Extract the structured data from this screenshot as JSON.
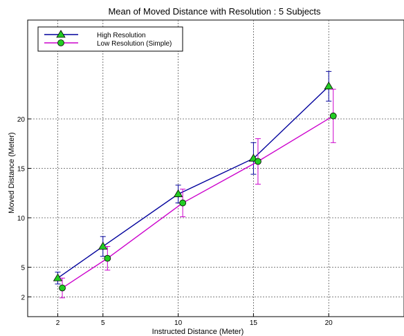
{
  "chart_data": {
    "type": "line",
    "title": "Mean of Moved Distance with Resolution : 5 Subjects",
    "xlabel": "Instructed Distance (Meter)",
    "ylabel": "Moved Distance (Meter)",
    "x_ticks": [
      2,
      5,
      10,
      15,
      20
    ],
    "y_ticks": [
      2,
      5,
      10,
      15,
      20
    ],
    "xlim": [
      0,
      25
    ],
    "ylim": [
      0,
      30
    ],
    "grid": true,
    "legend_position": "top-left",
    "series": [
      {
        "name": "High Resolution",
        "color": "#00009c",
        "marker": "triangle",
        "marker_color": "#22cc22",
        "points": [
          {
            "x": 2,
            "y": 3.9,
            "err": 0.6
          },
          {
            "x": 5,
            "y": 7.1,
            "err": 1.0
          },
          {
            "x": 10,
            "y": 12.4,
            "err": 0.9
          },
          {
            "x": 15,
            "y": 16.0,
            "err": 1.6
          },
          {
            "x": 20,
            "y": 23.3,
            "err": 1.5
          }
        ]
      },
      {
        "name": "Low Resolution (Simple)",
        "color": "#cc00cc",
        "marker": "circle",
        "marker_color": "#22cc22",
        "points": [
          {
            "x": 2.3,
            "y": 2.9,
            "err": 1.0
          },
          {
            "x": 5.3,
            "y": 5.9,
            "err": 1.2
          },
          {
            "x": 10.3,
            "y": 11.5,
            "err": 1.4
          },
          {
            "x": 15.3,
            "y": 15.7,
            "err": 2.3
          },
          {
            "x": 20.3,
            "y": 20.3,
            "err": 2.7
          }
        ]
      }
    ]
  }
}
